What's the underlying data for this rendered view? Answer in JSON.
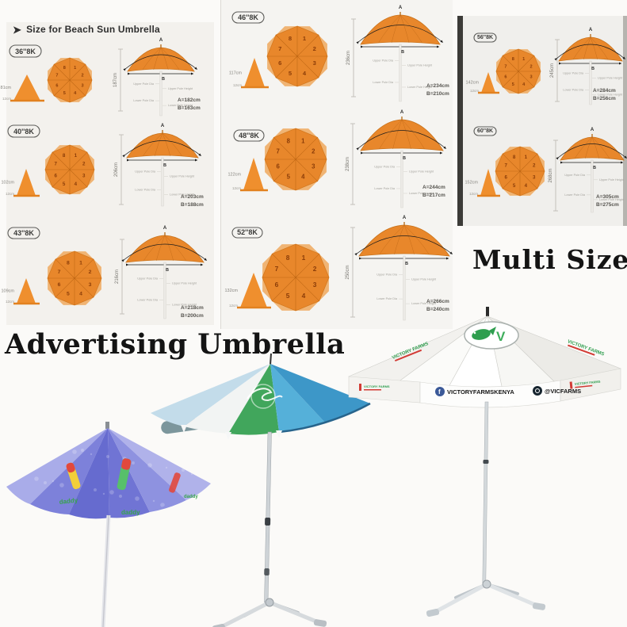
{
  "header": {
    "title": "Size for Beach Sun Umbrella"
  },
  "headings": {
    "advertising": "Advertising Umbrella",
    "multi_size": "Multi Size"
  },
  "diagram_labels": {
    "a": "A",
    "b": "B",
    "upper_pole_dia": "Upper Pole Dia",
    "upper_pole_height": "Upper Pole Height",
    "lower_pole_dia": "Lower Pole Dia",
    "lower_pole_height": "Lower Pole Height"
  },
  "panel_numbers": [
    "1",
    "2",
    "3",
    "4",
    "5",
    "6",
    "7",
    "8"
  ],
  "sizes": [
    {
      "label": "36''8K",
      "rib_height": "81cm",
      "base_width": "12cm",
      "pole_height": "187cm",
      "a_value": "A=182cm",
      "b_value": "B=163cm"
    },
    {
      "label": "40''8K",
      "rib_height": "102cm",
      "base_width": "12cm",
      "pole_height": "206cm",
      "a_value": "A=203cm",
      "b_value": "B=188cm"
    },
    {
      "label": "43''8K",
      "rib_height": "109cm",
      "base_width": "12cm",
      "pole_height": "216cm",
      "a_value": "A=218cm",
      "b_value": "B=200cm"
    },
    {
      "label": "46''8K",
      "rib_height": "117cm",
      "base_width": "12cm",
      "pole_height": "236cm",
      "a_value": "A=234cm",
      "b_value": "B=210cm"
    },
    {
      "label": "48''8K",
      "rib_height": "122cm",
      "base_width": "12cm",
      "pole_height": "238cm",
      "a_value": "A=244cm",
      "b_value": "B=217cm"
    },
    {
      "label": "52''8K",
      "rib_height": "132cm",
      "base_width": "12cm",
      "pole_height": "250cm",
      "a_value": "A=266cm",
      "b_value": "B=240cm"
    },
    {
      "label": "56''8K",
      "rib_height": "142cm",
      "base_width": "12cm",
      "pole_height": "245cm",
      "a_value": "A=284cm",
      "b_value": "B=256cm"
    },
    {
      "label": "60''8K",
      "rib_height": "152cm",
      "base_width": "12cm",
      "pole_height": "268cm",
      "a_value": "A=305cm",
      "b_value": "B=275cm"
    }
  ],
  "bottom_umbrellas": {
    "blue": {
      "brand": "daddy"
    },
    "white": {
      "logo_letter": "V",
      "valance_facebook": "VICTORYFARMSKENYA",
      "valance_handle": "@VICFARMS",
      "side_brand": "VICTORY FARMS"
    }
  },
  "colors": {
    "umbrella_orange": "#e8872b",
    "victory_green": "#2f9e4f"
  }
}
